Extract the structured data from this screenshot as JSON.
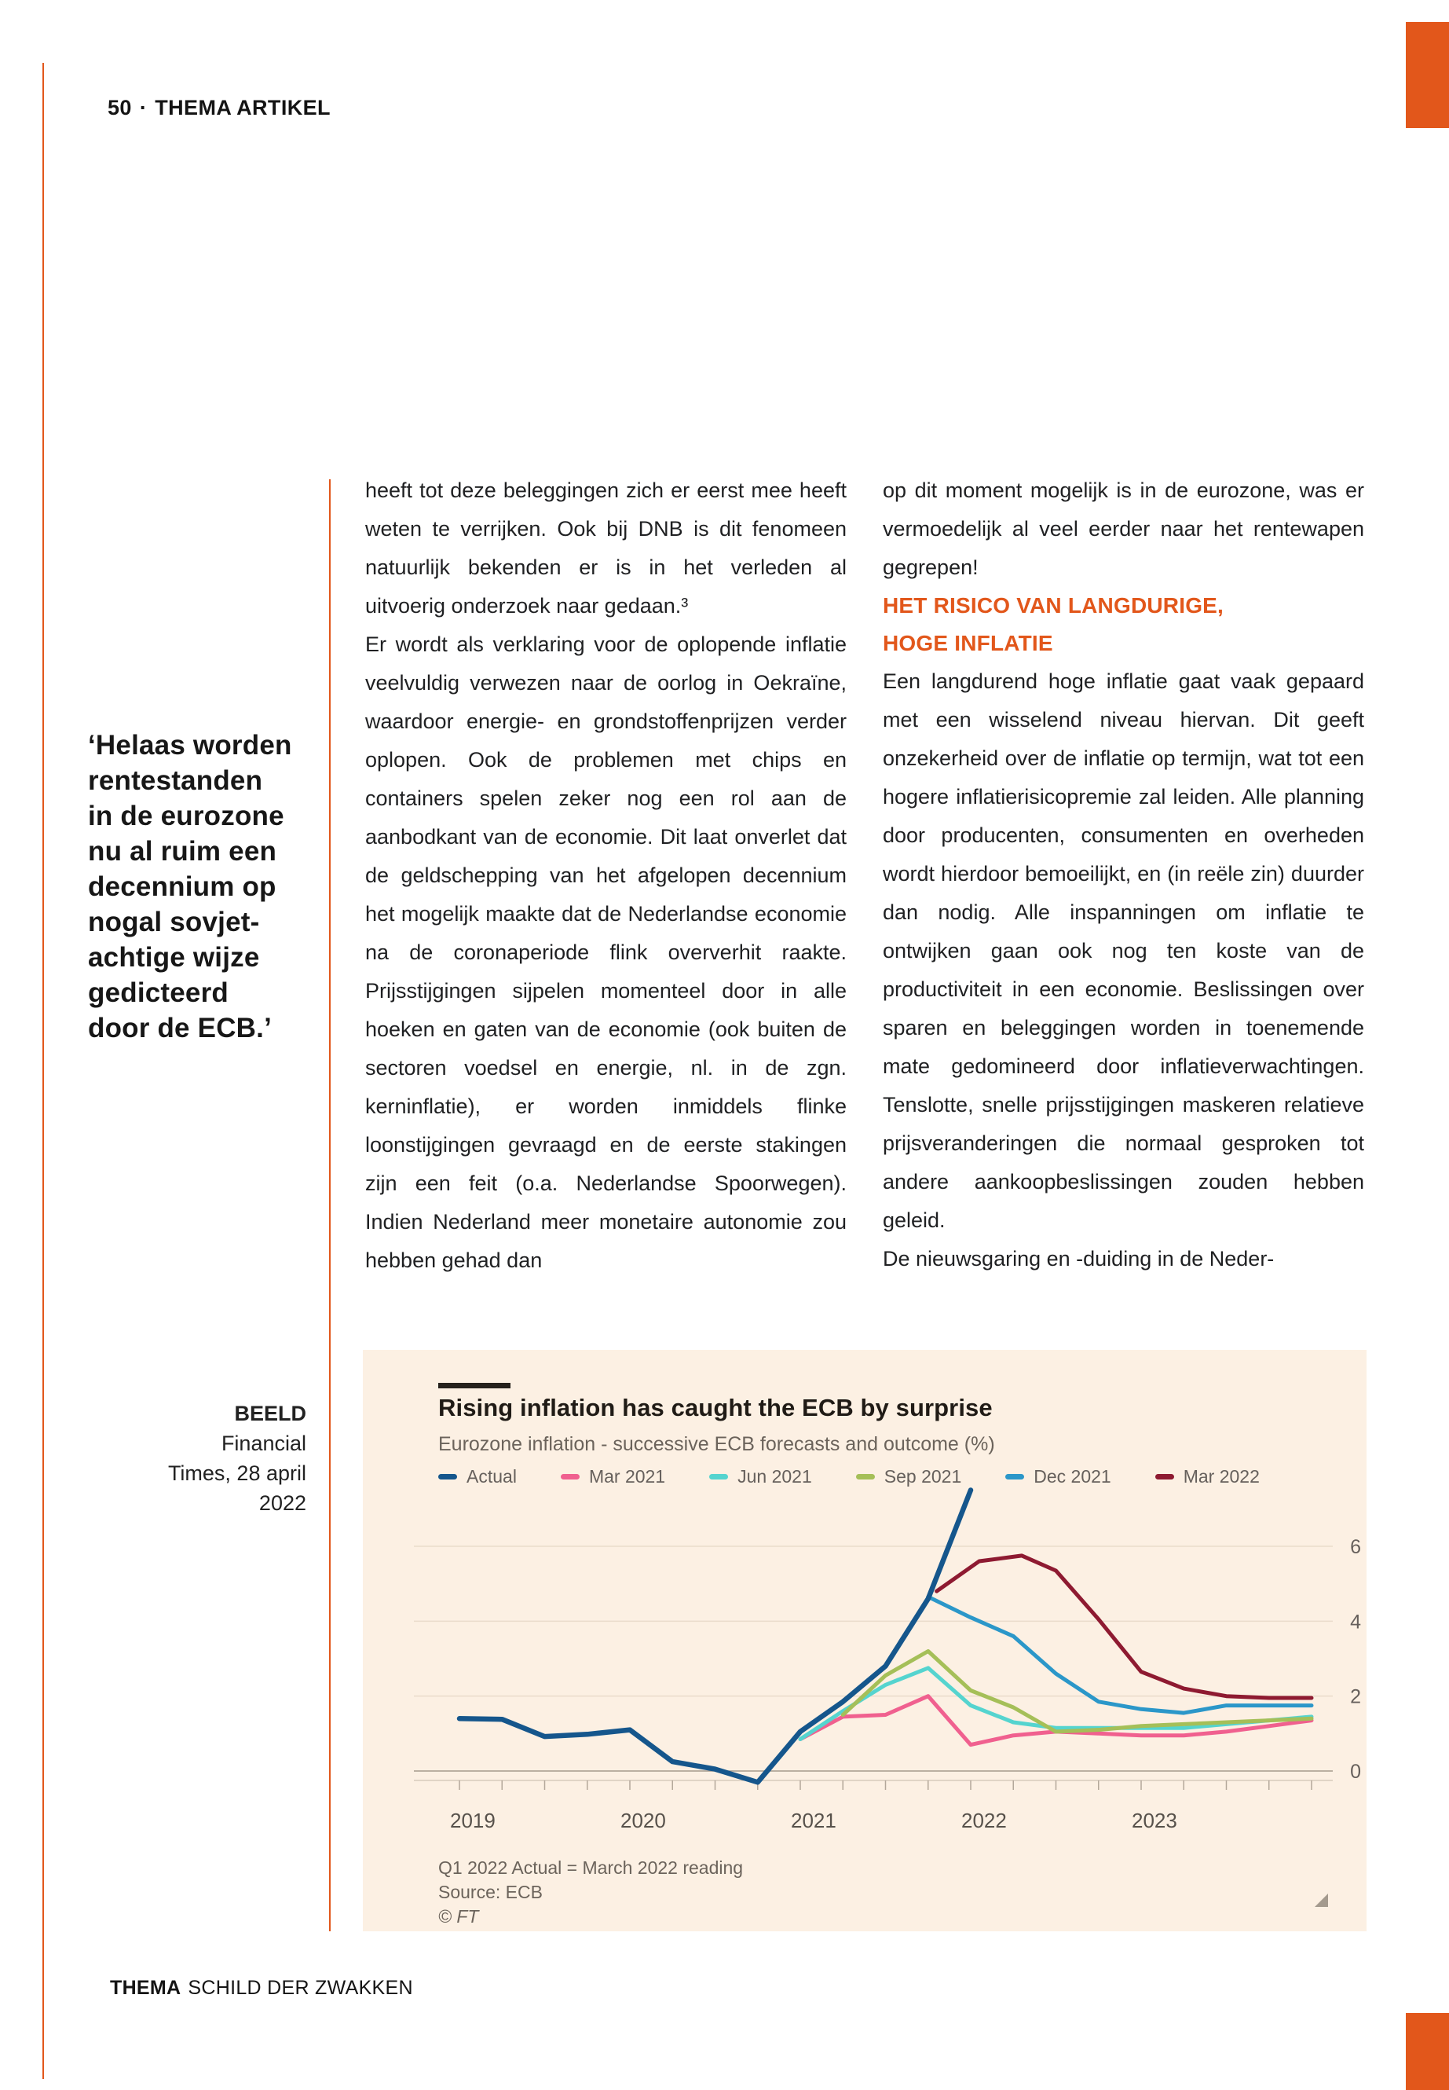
{
  "page": {
    "number": "50",
    "separator": "·",
    "section": "THEMA ARTIKEL",
    "footer_bold": "THEMA",
    "footer_rest": "SCHILD DER ZWAKKEN",
    "accent_color": "#E2571B"
  },
  "pullquote": {
    "text": "‘Helaas worden\nrentestanden\nin de eurozone\nnu al ruim een\ndecennium op\nnogal sovjet-\nachtige wijze\ngedicteerd\ndoor de ECB.’"
  },
  "caption": {
    "label": "BEELD",
    "source": "Financial\nTimes, 28 april\n2022"
  },
  "columns": {
    "col1": {
      "p1": "heeft tot deze beleggingen zich er eerst mee heeft weten te verrijken. Ook bij DNB is dit fenomeen natuurlijk bekenden er is in het verleden al uitvoerig onderzoek naar gedaan.³",
      "p2": "Er wordt als verklaring voor de oplopende inflatie veelvuldig verwezen naar de oorlog in Oekraïne, waardoor energie- en grondstoffenprijzen verder oplopen. Ook de problemen met chips en containers spelen zeker nog een rol aan de aanbodkant van de economie. Dit laat onverlet dat de geldschepping van het afgelopen decennium het mogelijk maakte dat de Nederlandse economie na de coronaperiode flink oververhit raakte. Prijsstijgingen sijpelen momenteel door in alle hoeken en gaten van de economie (ook buiten de sectoren voedsel en energie, nl. in de zgn. kerninflatie), er worden inmiddels flinke loonstijgingen gevraagd en de eerste stakingen zijn een feit (o.a. Nederlandse Spoorwegen). Indien Nederland meer monetaire autonomie zou hebben gehad dan"
    },
    "col2": {
      "p1": "op dit moment mogelijk is in de eurozone, was er vermoedelijk al veel eerder naar het rentewapen gegrepen!",
      "heading": "HET RISICO VAN LANGDURIGE,\nHOGE INFLATIE",
      "p2": "Een langdurend hoge inflatie gaat vaak gepaard met een wisselend niveau hiervan. Dit geeft onzekerheid over de inflatie op termijn, wat tot een hogere inflatierisicopremie zal leiden. Alle planning door producenten, consumenten en overheden wordt hierdoor bemoeilijkt, en (in reële zin) duurder dan nodig. Alle inspanningen om inflatie te ontwijken gaan ook nog ten koste van de productiviteit in een economie. Beslissingen over sparen en beleggingen worden in toenemende mate gedomineerd door inflatieverwachtingen. Tenslotte, snelle prijsstijgingen maskeren relatieve prijsveranderingen die normaal gesproken tot andere aankoopbeslissingen zouden hebben geleid.",
      "p3": "De nieuwsgaring en -duiding in de Neder-"
    }
  },
  "chart_data": {
    "type": "line",
    "title": "Rising inflation has caught the ECB by surprise",
    "subtitle": "Eurozone inflation - successive ECB forecasts and outcome (%)",
    "footnote": "Q1 2022 Actual = March 2022 reading",
    "source": "Source: ECB",
    "credit": "© FT",
    "background": "#FCF0E3",
    "legend_position": "top",
    "grid": true,
    "x_ticks_years": [
      2019,
      2020,
      2021,
      2022,
      2023
    ],
    "x_range": [
      2018.73,
      2024.12
    ],
    "y_gridlines": [
      0,
      2,
      4,
      6
    ],
    "y_range": [
      -0.6,
      7.8
    ],
    "series": [
      {
        "name": "Actual",
        "color": "#15568C",
        "width": 6.5,
        "draw_order": 6,
        "x": [
          2019.0,
          2019.25,
          2019.5,
          2019.75,
          2020.0,
          2020.25,
          2020.5,
          2020.75,
          2021.0,
          2021.25,
          2021.5,
          2021.75,
          2022.0
        ],
        "y": [
          1.4,
          1.38,
          0.92,
          0.98,
          1.1,
          0.25,
          0.05,
          -0.3,
          1.05,
          1.85,
          2.8,
          4.6,
          7.5
        ]
      },
      {
        "name": "Mar 2021",
        "color": "#F0608F",
        "width": 5,
        "draw_order": 1,
        "x": [
          2021.0,
          2021.25,
          2021.5,
          2021.75,
          2022.0,
          2022.25,
          2022.5,
          2022.75,
          2023.0,
          2023.25,
          2023.5,
          2023.75,
          2024.0
        ],
        "y": [
          0.85,
          1.45,
          1.5,
          2.0,
          0.7,
          0.95,
          1.05,
          1.0,
          0.95,
          0.95,
          1.05,
          1.2,
          1.35
        ]
      },
      {
        "name": "Jun 2021",
        "color": "#55D4CF",
        "width": 5,
        "draw_order": 2,
        "x": [
          2021.0,
          2021.25,
          2021.5,
          2021.75,
          2022.0,
          2022.25,
          2022.5,
          2022.75,
          2023.0,
          2023.25,
          2023.5,
          2023.75,
          2024.0
        ],
        "y": [
          0.85,
          1.6,
          2.3,
          2.75,
          1.75,
          1.3,
          1.15,
          1.15,
          1.15,
          1.15,
          1.25,
          1.35,
          1.45
        ]
      },
      {
        "name": "Sep 2021",
        "color": "#A5BF58",
        "width": 5,
        "draw_order": 3,
        "x": [
          2021.25,
          2021.5,
          2021.75,
          2022.0,
          2022.25,
          2022.5,
          2022.75,
          2023.0,
          2023.25,
          2023.5,
          2023.75,
          2024.0
        ],
        "y": [
          1.5,
          2.55,
          3.2,
          2.15,
          1.7,
          1.05,
          1.1,
          1.2,
          1.25,
          1.3,
          1.35,
          1.4
        ]
      },
      {
        "name": "Dec 2021",
        "color": "#2B97C9",
        "width": 5,
        "draw_order": 4,
        "x": [
          2021.75,
          2022.0,
          2022.25,
          2022.5,
          2022.75,
          2023.0,
          2023.25,
          2023.5,
          2023.75,
          2024.0
        ],
        "y": [
          4.65,
          4.1,
          3.6,
          2.6,
          1.85,
          1.65,
          1.55,
          1.75,
          1.75,
          1.75
        ]
      },
      {
        "name": "Mar 2022",
        "color": "#8E1A31",
        "width": 5,
        "draw_order": 5,
        "x": [
          2021.8,
          2022.05,
          2022.3,
          2022.5,
          2022.75,
          2023.0,
          2023.25,
          2023.5,
          2023.75,
          2024.0
        ],
        "y": [
          4.8,
          5.6,
          5.75,
          5.35,
          4.05,
          2.65,
          2.2,
          2.0,
          1.95,
          1.95
        ]
      }
    ]
  }
}
